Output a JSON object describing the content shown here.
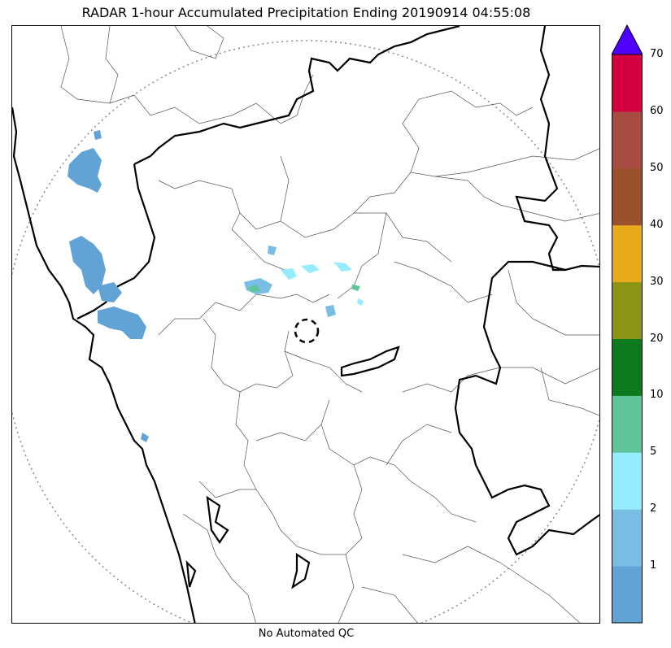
{
  "title": "RADAR 1-hour Accumulated Precipitation Ending 20190914 04:55:08",
  "footer_note": "No Automated QC",
  "colorbar": {
    "labels": [
      "1",
      "2",
      "5",
      "10",
      "20",
      "30",
      "40",
      "50",
      "60",
      "70"
    ],
    "colors": [
      "#62a3d6",
      "#78bde3",
      "#96ecff",
      "#5fc49a",
      "#0c7a1d",
      "#8b9414",
      "#e8aa1a",
      "#9b512c",
      "#a84c43",
      "#d4003f"
    ],
    "extend_color": "#5000ff"
  },
  "map": {
    "state_border_color": "#000000",
    "district_border_color": "#555555",
    "range_ring_color": "#888888",
    "precip_colors": {
      "light": "#62a3d6",
      "mid": "#78bde3",
      "cyan": "#96ecff",
      "green": "#5fc49a"
    }
  }
}
